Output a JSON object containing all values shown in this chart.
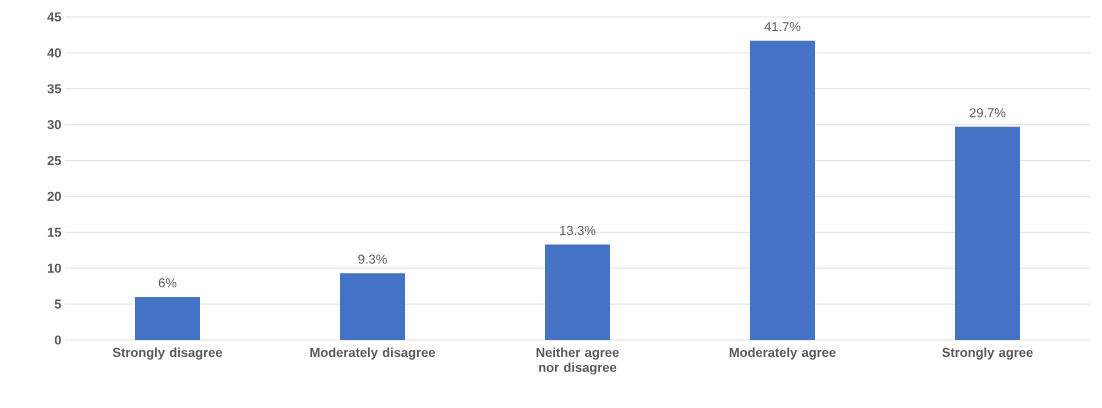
{
  "chart_data": {
    "type": "bar",
    "categories": [
      "Strongly disagree",
      "Moderately disagree",
      "Neither agree nor disagree",
      "Moderately agree",
      "Strongly agree"
    ],
    "values": [
      6,
      9.3,
      13.3,
      41.7,
      29.7
    ],
    "value_labels": [
      "6%",
      "9.3%",
      "13.3%",
      "41.7%",
      "29.7%"
    ],
    "color": "#4472c4",
    "ylim": [
      0,
      45
    ],
    "yticks": [
      0,
      5,
      10,
      15,
      20,
      25,
      30,
      35,
      40,
      45
    ],
    "grid": "y"
  }
}
